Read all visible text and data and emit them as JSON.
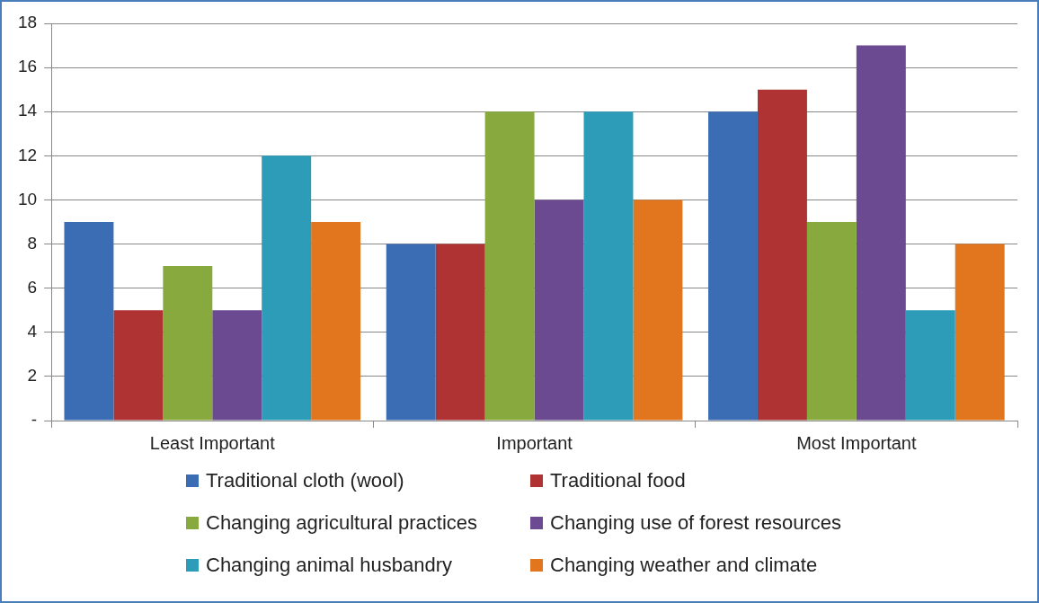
{
  "chart_data": {
    "type": "bar",
    "categories": [
      "Least Important",
      "Important",
      "Most Important"
    ],
    "series": [
      {
        "name": "Traditional cloth (wool)",
        "color": "#3a6db3",
        "values": [
          9,
          8,
          14
        ]
      },
      {
        "name": "Traditional food",
        "color": "#b03333",
        "values": [
          5,
          8,
          15
        ]
      },
      {
        "name": "Changing agricultural practices",
        "color": "#87a93d",
        "values": [
          7,
          14,
          9
        ]
      },
      {
        "name": "Changing use of forest resources",
        "color": "#6b4a92",
        "values": [
          5,
          10,
          17
        ]
      },
      {
        "name": "Changing animal husbandry",
        "color": "#2d9cb8",
        "values": [
          12,
          14,
          5
        ]
      },
      {
        "name": "Changing weather and climate",
        "color": "#e2761f",
        "values": [
          9,
          10,
          8
        ]
      }
    ],
    "ylim": [
      0,
      18
    ],
    "yticks": [
      {
        "value": 0,
        "label": "-"
      },
      2,
      4,
      6,
      8,
      10,
      12,
      14,
      16,
      18
    ],
    "grid": "y",
    "legend": "bottom"
  }
}
